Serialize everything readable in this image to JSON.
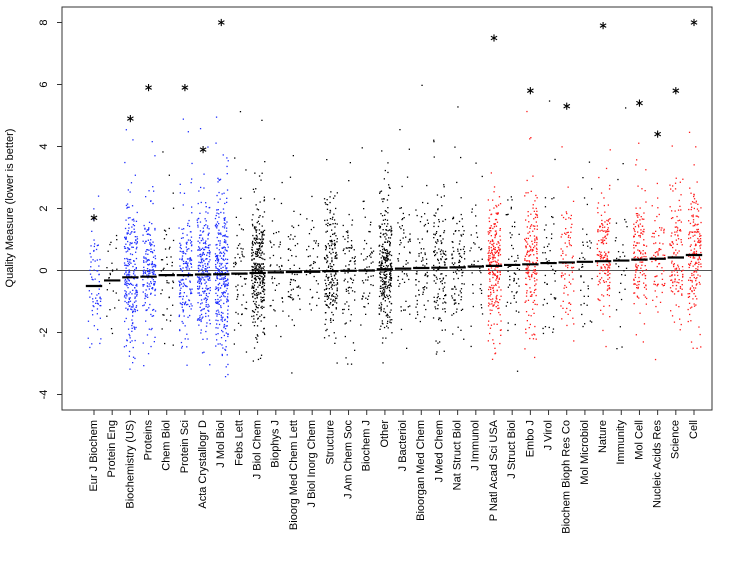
{
  "chart_data": {
    "type": "scatter",
    "title": "",
    "xlabel": "",
    "ylabel": "Quality Measure (lower is better)",
    "ylim": [
      -4.5,
      8.5
    ],
    "yticks": [
      -4,
      -2,
      0,
      2,
      4,
      6,
      8
    ],
    "reference_line_y": 0,
    "colors": {
      "black": "#000000",
      "blue": "#1f2fff",
      "red": "#ff1a1a"
    },
    "categories": [
      "Eur J Biochem",
      "Protein Eng",
      "Biochemistry (US)",
      "Proteins",
      "Chem Biol",
      "Protein Sci",
      "Acta Crystallogr D",
      "J Mol Biol",
      "Febs Lett",
      "J Biol Chem",
      "Biophys J",
      "Bioorg Med Chem Lett",
      "J Biol Inorg Chem",
      "Structure",
      "J Am Chem Soc",
      "Biochem J",
      "Other",
      "J Bacteriol",
      "Bioorgan Med Chem",
      "J Med Chem",
      "Nat Struct Biol",
      "J Immunol",
      "P Natl Acad Sci USA",
      "J Struct Biol",
      "Embo J",
      "J Virol",
      "Biochem Bioph Res Co",
      "Mol Microbiol",
      "Nature",
      "Immunity",
      "Mol Cell",
      "Nucleic Acids Res",
      "Science",
      "Cell"
    ],
    "point_colors": [
      "blue",
      "black",
      "blue",
      "blue",
      "black",
      "blue",
      "blue",
      "blue",
      "black",
      "black",
      "black",
      "black",
      "black",
      "black",
      "black",
      "black",
      "black",
      "black",
      "black",
      "black",
      "black",
      "black",
      "red",
      "black",
      "red",
      "black",
      "red",
      "black",
      "red",
      "black",
      "red",
      "red",
      "red",
      "red"
    ],
    "medians": [
      -0.5,
      -0.32,
      -0.22,
      -0.2,
      -0.15,
      -0.15,
      -0.13,
      -0.12,
      -0.1,
      -0.08,
      -0.06,
      -0.05,
      -0.04,
      -0.02,
      -0.01,
      0.0,
      0.04,
      0.06,
      0.08,
      0.09,
      0.1,
      0.13,
      0.15,
      0.18,
      0.2,
      0.24,
      0.26,
      0.28,
      0.3,
      0.32,
      0.35,
      0.38,
      0.42,
      0.5
    ],
    "max_outliers": [
      1.7,
      null,
      4.9,
      5.9,
      null,
      5.9,
      3.9,
      8.0,
      null,
      null,
      null,
      null,
      null,
      null,
      null,
      null,
      null,
      null,
      null,
      null,
      null,
      null,
      7.5,
      null,
      5.8,
      null,
      5.3,
      null,
      7.9,
      null,
      5.4,
      4.4,
      5.8,
      8.0
    ],
    "point_counts": [
      70,
      25,
      230,
      170,
      45,
      170,
      230,
      300,
      60,
      320,
      45,
      55,
      40,
      200,
      80,
      55,
      290,
      60,
      70,
      140,
      100,
      40,
      240,
      60,
      180,
      50,
      80,
      40,
      150,
      30,
      140,
      70,
      120,
      170
    ],
    "spreads": [
      0.8,
      0.9,
      1.1,
      1.0,
      1.0,
      1.0,
      1.0,
      1.1,
      1.0,
      1.0,
      1.0,
      1.0,
      1.0,
      1.0,
      1.0,
      1.0,
      1.0,
      1.0,
      1.0,
      1.0,
      1.0,
      1.0,
      1.0,
      1.0,
      1.0,
      1.0,
      1.0,
      1.0,
      1.0,
      1.0,
      1.0,
      1.0,
      1.0,
      1.0
    ]
  }
}
